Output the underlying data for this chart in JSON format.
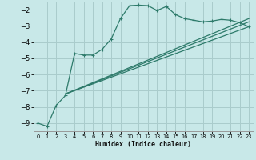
{
  "xlabel": "Humidex (Indice chaleur)",
  "background_color": "#c8e8e8",
  "grid_color": "#aacccc",
  "line_color": "#2d7a6a",
  "xlim": [
    -0.5,
    23.5
  ],
  "ylim": [
    -9.5,
    -1.5
  ],
  "yticks": [
    -9,
    -8,
    -7,
    -6,
    -5,
    -4,
    -3,
    -2
  ],
  "xticks": [
    0,
    1,
    2,
    3,
    4,
    5,
    6,
    7,
    8,
    9,
    10,
    11,
    12,
    13,
    14,
    15,
    16,
    17,
    18,
    19,
    20,
    21,
    22,
    23
  ],
  "main_x": [
    0,
    1,
    2,
    3,
    4,
    5,
    6,
    7,
    8,
    9,
    10,
    11,
    12,
    13,
    14,
    15,
    16,
    17,
    18,
    19,
    20,
    21,
    22,
    23
  ],
  "main_y": [
    -9.0,
    -9.2,
    -7.9,
    -7.3,
    -4.7,
    -4.8,
    -4.8,
    -4.45,
    -3.8,
    -2.55,
    -1.75,
    -1.72,
    -1.75,
    -2.05,
    -1.8,
    -2.3,
    -2.55,
    -2.65,
    -2.75,
    -2.7,
    -2.6,
    -2.65,
    -2.8,
    -3.05
  ],
  "line2_x": [
    3,
    23
  ],
  "line2_y": [
    -7.2,
    -3.05
  ],
  "line3_x": [
    3,
    23
  ],
  "line3_y": [
    -7.2,
    -2.75
  ],
  "line4_x": [
    3,
    23
  ],
  "line4_y": [
    -7.2,
    -2.55
  ]
}
